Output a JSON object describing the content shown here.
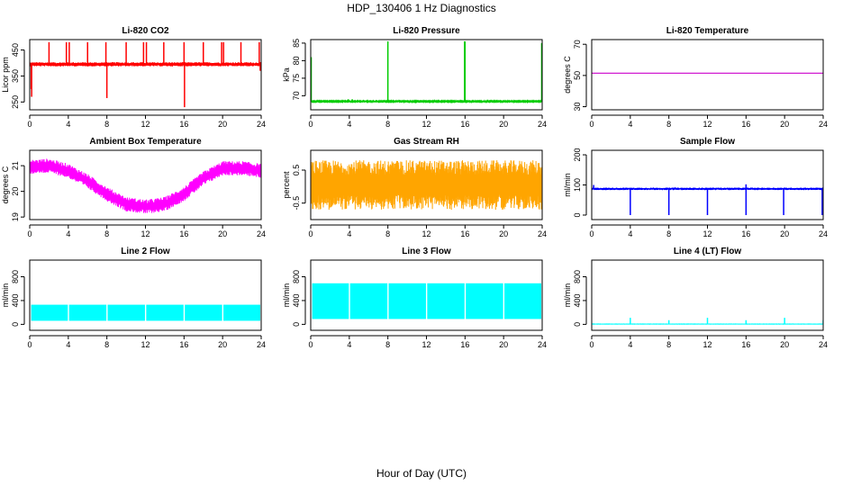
{
  "title": "HDP_130406  1 Hz Diagnostics",
  "xlabel": "Hour of Day (UTC)",
  "chart_data": [
    {
      "type": "line",
      "title": "Li-820 CO2",
      "ylabel": "Licor ppm",
      "color": "#ff0000",
      "xlim": [
        0,
        24
      ],
      "ylim": [
        220,
        490
      ],
      "xticks": [
        0,
        4,
        8,
        12,
        16,
        20,
        24
      ],
      "yticks": [
        250,
        350,
        450
      ],
      "base": 395,
      "noise": 8,
      "wave": 0,
      "gapAt": [],
      "spikes": [
        [
          0.15,
          300
        ],
        [
          0.2,
          270
        ],
        [
          2.0,
          480
        ],
        [
          3.8,
          480
        ],
        [
          4.1,
          480
        ],
        [
          6.0,
          480
        ],
        [
          7.9,
          480
        ],
        [
          8.0,
          265
        ],
        [
          10.0,
          480
        ],
        [
          11.8,
          480
        ],
        [
          12.1,
          480
        ],
        [
          13.9,
          480
        ],
        [
          16.0,
          480
        ],
        [
          16.05,
          230
        ],
        [
          18.0,
          480
        ],
        [
          19.9,
          480
        ],
        [
          20.1,
          480
        ],
        [
          21.9,
          480
        ],
        [
          23.8,
          480
        ],
        [
          23.9,
          370
        ]
      ]
    },
    {
      "type": "line",
      "title": "Li-820 Pressure",
      "ylabel": "kPa",
      "color": "#00cc00",
      "xlim": [
        0,
        24
      ],
      "ylim": [
        66,
        86
      ],
      "xticks": [
        0,
        4,
        8,
        12,
        16,
        20,
        24
      ],
      "yticks": [
        70,
        75,
        80,
        85
      ],
      "base": 68.4,
      "noise": 0.15,
      "wave": 0,
      "gapAt": [],
      "spikes": [
        [
          0.05,
          81
        ],
        [
          3.9,
          69
        ],
        [
          4.3,
          69
        ],
        [
          8.0,
          85.5
        ],
        [
          15.95,
          85.5
        ],
        [
          16.0,
          85.5
        ],
        [
          23.95,
          85
        ]
      ]
    },
    {
      "type": "line",
      "title": "Li-820 Temperature",
      "ylabel": "degrees C",
      "color": "#cc00cc",
      "xlim": [
        0,
        24
      ],
      "ylim": [
        28,
        73
      ],
      "xticks": [
        0,
        4,
        8,
        12,
        16,
        20,
        24
      ],
      "yticks": [
        30,
        50,
        70
      ],
      "base": 51.5,
      "noise": 0,
      "wave": 0,
      "gapAt": [],
      "spikes": []
    },
    {
      "type": "line",
      "title": "Ambient Box Temperature",
      "ylabel": "degrees C",
      "color": "#ff00ff",
      "xlim": [
        0,
        24
      ],
      "ylim": [
        18.9,
        21.6
      ],
      "xticks": [
        0,
        4,
        8,
        12,
        16,
        20,
        24
      ],
      "yticks": [
        19.0,
        20.0,
        21.0
      ],
      "x": [
        0,
        2,
        4,
        6,
        8,
        10,
        12,
        14,
        16,
        18,
        20,
        22,
        24
      ],
      "y": [
        20.95,
        21.0,
        20.8,
        20.4,
        19.9,
        19.5,
        19.4,
        19.5,
        19.9,
        20.5,
        20.9,
        20.9,
        20.8
      ],
      "noise": 0.28,
      "gapAt": [],
      "spikes": []
    },
    {
      "type": "line",
      "title": "Gas Stream RH",
      "ylabel": "percent",
      "color": "#ffa500",
      "xlim": [
        0,
        24
      ],
      "ylim": [
        -1.0,
        1.1
      ],
      "xticks": [
        0,
        4,
        8,
        12,
        16,
        20,
        24
      ],
      "yticks": [
        -0.5,
        0.5
      ],
      "base": 0.05,
      "noise": 0.75,
      "wave": 0,
      "gapAt": [],
      "spikes": []
    },
    {
      "type": "line",
      "title": "Sample Flow",
      "ylabel": "ml/min",
      "color": "#0000ff",
      "xlim": [
        0,
        24
      ],
      "ylim": [
        -15,
        215
      ],
      "xticks": [
        0,
        4,
        8,
        12,
        16,
        20,
        24
      ],
      "yticks": [
        0,
        100,
        200
      ],
      "base": 87,
      "noise": 4,
      "wave": 0,
      "gapAt": [],
      "spikes": [
        [
          4.0,
          0
        ],
        [
          8.0,
          0
        ],
        [
          12.0,
          0
        ],
        [
          16.0,
          0
        ],
        [
          19.9,
          0
        ],
        [
          23.9,
          0
        ],
        [
          16.0,
          102
        ],
        [
          0.2,
          100
        ]
      ]
    },
    {
      "type": "line",
      "title": "Line 2 Flow",
      "ylabel": "ml/min",
      "color": "#00ffff",
      "xlim": [
        0,
        24
      ],
      "ylim": [
        -100,
        1080
      ],
      "xticks": [
        0,
        4,
        8,
        12,
        16,
        20,
        24
      ],
      "yticks": [
        0,
        400,
        800
      ],
      "band": [
        60,
        330
      ],
      "gapAt": [
        4,
        8,
        12,
        16,
        20
      ],
      "spikes": []
    },
    {
      "type": "line",
      "title": "Line 3 Flow",
      "ylabel": "ml/min",
      "color": "#00ffff",
      "xlim": [
        0,
        24
      ],
      "ylim": [
        -100,
        1080
      ],
      "xticks": [
        0,
        4,
        8,
        12,
        16,
        20,
        24
      ],
      "yticks": [
        0,
        400,
        800
      ],
      "band": [
        90,
        690
      ],
      "gapAt": [
        4,
        8,
        12,
        16,
        20
      ],
      "spikes": []
    },
    {
      "type": "line",
      "title": "Line 4 (LT) Flow",
      "ylabel": "ml/min",
      "color": "#00ffff",
      "xlim": [
        0,
        24
      ],
      "ylim": [
        -100,
        1080
      ],
      "xticks": [
        0,
        4,
        8,
        12,
        16,
        20,
        24
      ],
      "yticks": [
        0,
        400,
        800
      ],
      "base": 5,
      "noise": 2,
      "wave": 0,
      "gapAt": [],
      "spikes": [
        [
          4.0,
          110
        ],
        [
          8.0,
          70
        ],
        [
          12.0,
          110
        ],
        [
          16.0,
          70
        ],
        [
          20.0,
          110
        ],
        [
          24.0,
          70
        ]
      ]
    }
  ]
}
